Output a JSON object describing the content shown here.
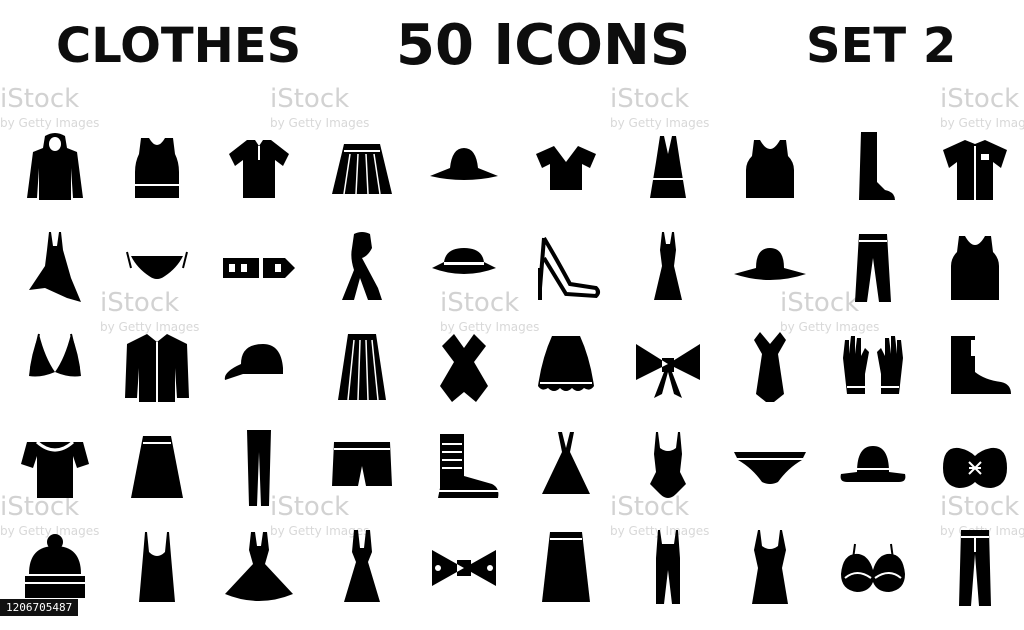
{
  "title": {
    "left": "CLOTHES",
    "center": "50 ICONS",
    "right": "SET 2"
  },
  "watermark": {
    "brand": "iStock",
    "credit": "by Getty Images"
  },
  "stock_id": "1206705487",
  "colors": {
    "ink": "#000000",
    "background": "#ffffff",
    "watermark": "#d2d2d2"
  },
  "icons": [
    [
      "hoodie-icon",
      "tank-top-icon",
      "polo-shirt-icon",
      "pleated-skirt-icon",
      "wide-brim-hat-icon",
      "crop-top-icon",
      "halter-top-icon",
      "crop-tank-icon",
      "knee-boot-icon",
      "button-shirt-icon"
    ],
    [
      "asymmetric-dress-icon",
      "bikini-bottom-icon",
      "belt-icon",
      "scarf-icon",
      "fedora-icon",
      "high-heel-sandal-icon",
      "evening-gown-icon",
      "sun-hat-icon",
      "trousers-icon",
      "tank-top-2-icon"
    ],
    [
      "bikini-top-icon",
      "jacket-icon",
      "baseball-cap-icon",
      "long-pleated-skirt-icon",
      "wrap-dress-icon",
      "frill-skirt-icon",
      "bow-icon",
      "cocktail-dress-icon",
      "gloves-icon",
      "ankle-boot-icon"
    ],
    [
      "off-shoulder-top-icon",
      "a-line-skirt-icon",
      "leggings-icon",
      "shorts-icon",
      "combat-boot-icon",
      "halter-dress-icon",
      "swimsuit-icon",
      "briefs-icon",
      "bowler-hat-icon",
      "bandeau-top-icon"
    ],
    [
      "beanie-icon",
      "camisole-icon",
      "ballgown-icon",
      "halter-mini-dress-icon",
      "bow-tie-icon",
      "midi-skirt-icon",
      "jumpsuit-icon",
      "slip-dress-icon",
      "bra-icon",
      "jeans-icon"
    ]
  ]
}
